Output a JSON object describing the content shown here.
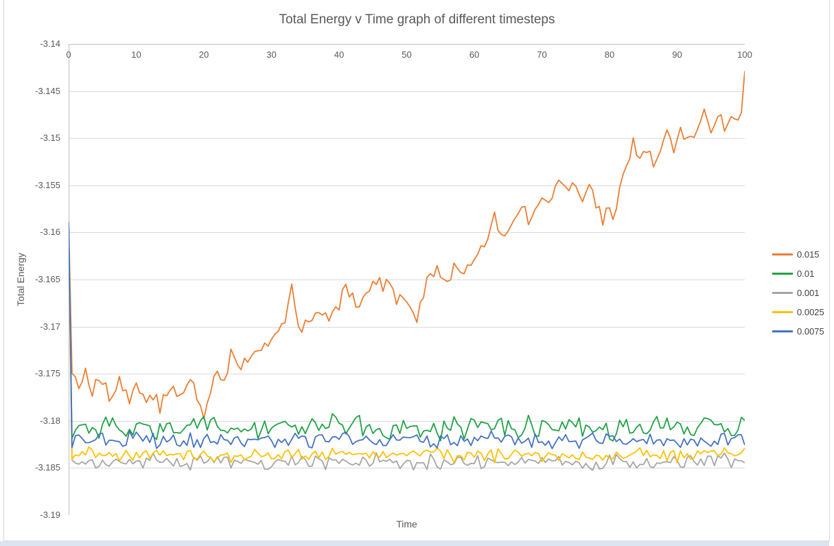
{
  "window": {
    "border_color": "#d9d9d9",
    "bottom_strip_color": "#dbe5f1"
  },
  "colors": {
    "grid": "#d9d9d9",
    "axis": "#bfbfbf",
    "tick_text": "#595959",
    "title_text": "#595959",
    "legend_text": "#3f3f3f"
  },
  "chart_data": {
    "type": "line",
    "title": "Total Energy v Time graph of different timesteps",
    "xlabel": "Time",
    "ylabel": "Total Energy",
    "xlim": [
      0,
      100
    ],
    "ylim": [
      -3.19,
      -3.14
    ],
    "grid": true,
    "legend_position": "right",
    "x_axis_position": "top",
    "x_ticks": [
      0,
      10,
      20,
      30,
      40,
      50,
      60,
      70,
      80,
      90,
      100
    ],
    "x_tick_labels": [
      "0",
      "10",
      "20",
      "30",
      "40",
      "50",
      "60",
      "70",
      "80",
      "90",
      "100"
    ],
    "y_ticks": [
      -3.14,
      -3.145,
      -3.15,
      -3.155,
      -3.16,
      -3.165,
      -3.17,
      -3.175,
      -3.18,
      -3.185,
      -3.19
    ],
    "y_tick_labels": [
      "-3.14",
      "-3.145",
      "-3.15",
      "-3.155",
      "-3.16",
      "-3.165",
      "-3.17",
      "-3.175",
      "-3.18",
      "-3.185",
      "-3.19"
    ],
    "x_step": 0.5,
    "series_note": "All runs start at total energy -3.1589 at t=0, drop sharply, then fluctuate; anchors give the mean trajectory read from the plot, noise is the fluctuation half-range",
    "series": [
      {
        "name": "0.015",
        "color": "#ED7D31",
        "noise": 0.0012,
        "seed": 101,
        "anchors": [
          [
            0,
            -3.1589
          ],
          [
            0.5,
            -3.1742
          ],
          [
            1.5,
            -3.1762
          ],
          [
            2.5,
            -3.1746
          ],
          [
            3.5,
            -3.1768
          ],
          [
            4.5,
            -3.1753
          ],
          [
            6,
            -3.1772
          ],
          [
            7.5,
            -3.1758
          ],
          [
            9,
            -3.1782
          ],
          [
            10,
            -3.1766
          ],
          [
            11,
            -3.1778
          ],
          [
            12,
            -3.1768
          ],
          [
            13.5,
            -3.1788
          ],
          [
            15,
            -3.1759
          ],
          [
            16.5,
            -3.1774
          ],
          [
            18,
            -3.1756
          ],
          [
            19,
            -3.1779
          ],
          [
            20,
            -3.1797
          ],
          [
            21,
            -3.1762
          ],
          [
            22,
            -3.1748
          ],
          [
            23,
            -3.1761
          ],
          [
            24,
            -3.1727
          ],
          [
            25.5,
            -3.1742
          ],
          [
            27,
            -3.1722
          ],
          [
            28.5,
            -3.1728
          ],
          [
            30,
            -3.1712
          ],
          [
            31.5,
            -3.1702
          ],
          [
            33,
            -3.1661
          ],
          [
            34,
            -3.17
          ],
          [
            35.5,
            -3.1693
          ],
          [
            37,
            -3.1683
          ],
          [
            38.5,
            -3.1689
          ],
          [
            40,
            -3.1673
          ],
          [
            41,
            -3.1656
          ],
          [
            42.5,
            -3.1678
          ],
          [
            44,
            -3.1669
          ],
          [
            45.5,
            -3.1651
          ],
          [
            47,
            -3.1651
          ],
          [
            48.5,
            -3.1673
          ],
          [
            50,
            -3.1669
          ],
          [
            51.5,
            -3.1694
          ],
          [
            53,
            -3.1651
          ],
          [
            54.5,
            -3.1643
          ],
          [
            56,
            -3.1649
          ],
          [
            57.5,
            -3.1636
          ],
          [
            58.5,
            -3.1649
          ],
          [
            60,
            -3.1626
          ],
          [
            61.5,
            -3.1616
          ],
          [
            63,
            -3.1584
          ],
          [
            64,
            -3.1611
          ],
          [
            65,
            -3.1596
          ],
          [
            66.5,
            -3.1576
          ],
          [
            68,
            -3.1586
          ],
          [
            69.5,
            -3.1569
          ],
          [
            70.5,
            -3.1556
          ],
          [
            71.5,
            -3.1561
          ],
          [
            72.5,
            -3.1546
          ],
          [
            73.5,
            -3.1556
          ],
          [
            75,
            -3.1549
          ],
          [
            76,
            -3.1561
          ],
          [
            77,
            -3.1553
          ],
          [
            78,
            -3.1566
          ],
          [
            79,
            -3.1589
          ],
          [
            80,
            -3.1571
          ],
          [
            80.7,
            -3.1586
          ],
          [
            81.5,
            -3.1556
          ],
          [
            82.5,
            -3.1526
          ],
          [
            83.5,
            -3.1506
          ],
          [
            84.5,
            -3.1521
          ],
          [
            85.5,
            -3.1509
          ],
          [
            86.5,
            -3.1531
          ],
          [
            87.5,
            -3.1513
          ],
          [
            88.5,
            -3.1496
          ],
          [
            89.5,
            -3.1509
          ],
          [
            90.5,
            -3.1491
          ],
          [
            91.5,
            -3.1503
          ],
          [
            93,
            -3.1496
          ],
          [
            94,
            -3.1476
          ],
          [
            95,
            -3.1499
          ],
          [
            96,
            -3.1481
          ],
          [
            97,
            -3.1489
          ],
          [
            98,
            -3.1473
          ],
          [
            99,
            -3.1483
          ],
          [
            99.6,
            -3.1471
          ],
          [
            100,
            -3.1432
          ]
        ]
      },
      {
        "name": "0.01",
        "color": "#20A244",
        "noise": 0.0015,
        "seed": 202,
        "anchors": [
          [
            0,
            -3.1589
          ],
          [
            0.4,
            -3.1806
          ],
          [
            100,
            -3.1807
          ]
        ]
      },
      {
        "name": "0.001",
        "color": "#A5A5A5",
        "noise": 0.001,
        "seed": 303,
        "anchors": [
          [
            0,
            -3.1589
          ],
          [
            0.4,
            -3.1843
          ],
          [
            100,
            -3.1844
          ]
        ]
      },
      {
        "name": "0.0025",
        "color": "#FFC000",
        "noise": 0.0009,
        "seed": 404,
        "anchors": [
          [
            0,
            -3.1589
          ],
          [
            0.4,
            -3.1836
          ],
          [
            100,
            -3.1836
          ]
        ]
      },
      {
        "name": "0.0075",
        "color": "#4472C4",
        "noise": 0.001,
        "seed": 505,
        "anchors": [
          [
            0,
            -3.1589
          ],
          [
            0.4,
            -3.182
          ],
          [
            100,
            -3.1821
          ]
        ]
      }
    ]
  }
}
